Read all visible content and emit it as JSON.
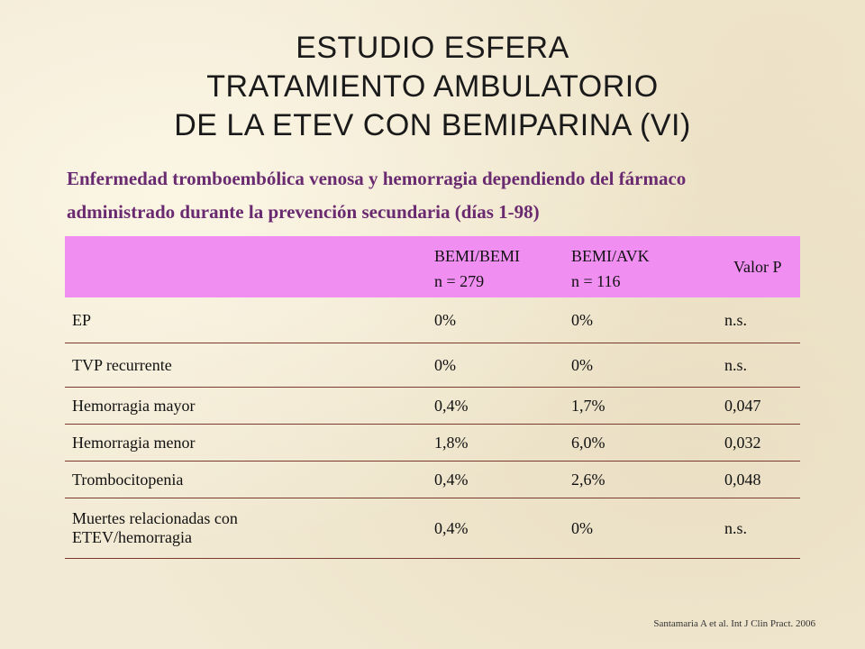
{
  "title": {
    "line1": "ESTUDIO ESFERA",
    "line2": "TRATAMIENTO AMBULATORIO",
    "line3": "DE LA ETEV CON BEMIPARINA (VI)"
  },
  "subtitle": {
    "line1": "Enfermedad tromboembólica venosa y hemorragia dependiendo del fármaco",
    "line2": "administrado durante la prevención secundaria (días 1-98)"
  },
  "table": {
    "header": {
      "col1": "",
      "col2_line1": "BEMI/BEMI",
      "col2_line2": "n = 279",
      "col3_line1": "BEMI/AVK",
      "col3_line2": "n = 116",
      "col4": "Valor P"
    },
    "rows": [
      {
        "label": "EP",
        "bemi": "0%",
        "avk": "0%",
        "p": "n.s."
      },
      {
        "label": "TVP recurrente",
        "bemi": "0%",
        "avk": "0%",
        "p": "n.s."
      },
      {
        "label": "Hemorragia mayor",
        "bemi": "0,4%",
        "avk": "1,7%",
        "p": "0,047"
      },
      {
        "label": "Hemorragia menor",
        "bemi": "1,8%",
        "avk": "6,0%",
        "p": "0,032"
      },
      {
        "label": "Trombocitopenia",
        "bemi": "0,4%",
        "avk": "2,6%",
        "p": "0,048"
      },
      {
        "label_line1": "Muertes relacionadas con",
        "label_line2": "ETEV/hemorragia",
        "bemi": "0,4%",
        "avk": "0%",
        "p": "n.s."
      }
    ]
  },
  "citation": "Santamaria A et al. Int J Clin Pract. 2006",
  "colors": {
    "header_bg": "#f08ef2",
    "subtitle": "#6a2a70",
    "rule": "#7a3a2e"
  }
}
